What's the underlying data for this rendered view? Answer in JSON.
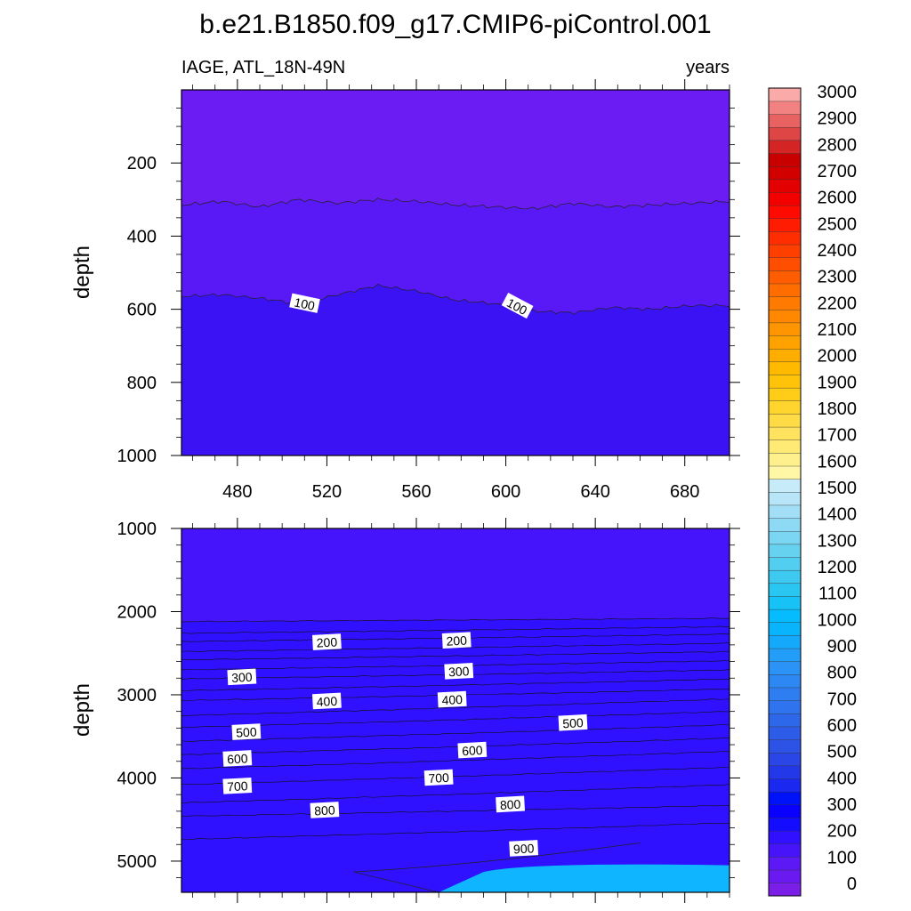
{
  "title": "b.e21.B1850.f09_g17.CMIP6-piControl.001",
  "chart_data": [
    {
      "type": "heatmap",
      "panel": "upper",
      "left_label": "IAGE, ATL_18N-49N",
      "right_label": "years",
      "xlabel": "",
      "ylabel": "depth",
      "xlim": [
        455,
        700
      ],
      "ylim": [
        0,
        1000
      ],
      "y_reversed": true,
      "xticks": [
        480,
        520,
        560,
        600,
        640,
        680
      ],
      "yticks": [
        200,
        400,
        600,
        800,
        1000
      ],
      "contour_levels": [
        50,
        100
      ],
      "contours": [
        {
          "level": 50,
          "depth": [
            315,
            305,
            320,
            300,
            310,
            300,
            305,
            315,
            320,
            325,
            310,
            320,
            315,
            310,
            305
          ],
          "labeled": false
        },
        {
          "level": 100,
          "depth": [
            565,
            560,
            570,
            585,
            560,
            535,
            550,
            575,
            585,
            605,
            610,
            595,
            600,
            590,
            590
          ],
          "labeled": true,
          "label_x": [
            510,
            605
          ]
        }
      ]
    },
    {
      "type": "heatmap",
      "panel": "lower",
      "xlabel": "",
      "ylabel": "depth",
      "xlim": [
        455,
        700
      ],
      "ylim": [
        1000,
        5375
      ],
      "y_reversed": true,
      "yticks": [
        1000,
        2000,
        3000,
        4000,
        5000
      ],
      "contour_levels": [
        200,
        300,
        400,
        500,
        600,
        700,
        800,
        900
      ],
      "contour_depths": [
        {
          "level": 50,
          "left": 2120,
          "right": 2080
        },
        {
          "level": 100,
          "left": 2260,
          "right": 2180
        },
        {
          "level": 150,
          "left": 2360,
          "right": 2270
        },
        {
          "level": 200,
          "left": 2480,
          "right": 2380
        },
        {
          "level": 250,
          "left": 2580,
          "right": 2480
        },
        {
          "level": 300,
          "left": 2700,
          "right": 2590
        },
        {
          "level": 350,
          "left": 2810,
          "right": 2700
        },
        {
          "level": 400,
          "left": 2950,
          "right": 2810
        },
        {
          "level": 450,
          "left": 3070,
          "right": 2930
        },
        {
          "level": 500,
          "left": 3250,
          "right": 3050
        },
        {
          "level": 550,
          "left": 3390,
          "right": 3200
        },
        {
          "level": 600,
          "left": 3560,
          "right": 3360
        },
        {
          "level": 650,
          "left": 3720,
          "right": 3520
        },
        {
          "level": 700,
          "left": 3890,
          "right": 3680
        },
        {
          "level": 750,
          "left": 4080,
          "right": 3870
        },
        {
          "level": 800,
          "left": 4300,
          "right": 4080
        },
        {
          "level": 850,
          "left": 4460,
          "right": 4330
        },
        {
          "level": 900,
          "left": 4740,
          "right": 4540
        }
      ],
      "labels": [
        {
          "text": "200",
          "x": 520,
          "depth": 2370
        },
        {
          "text": "200",
          "x": 578,
          "depth": 2350
        },
        {
          "text": "300",
          "x": 482,
          "depth": 2790
        },
        {
          "text": "300",
          "x": 579,
          "depth": 2720
        },
        {
          "text": "400",
          "x": 520,
          "depth": 3080
        },
        {
          "text": "400",
          "x": 576,
          "depth": 3060
        },
        {
          "text": "500",
          "x": 484,
          "depth": 3450
        },
        {
          "text": "500",
          "x": 630,
          "depth": 3340
        },
        {
          "text": "600",
          "x": 480,
          "depth": 3770
        },
        {
          "text": "600",
          "x": 585,
          "depth": 3670
        },
        {
          "text": "700",
          "x": 480,
          "depth": 4100
        },
        {
          "text": "700",
          "x": 570,
          "depth": 4000
        },
        {
          "text": "800",
          "x": 519,
          "depth": 4390
        },
        {
          "text": "800",
          "x": 602,
          "depth": 4320
        },
        {
          "text": "900",
          "x": 608,
          "depth": 4850
        }
      ]
    }
  ],
  "colorbar": {
    "labels": [
      "0",
      "100",
      "200",
      "300",
      "400",
      "500",
      "600",
      "700",
      "800",
      "900",
      "1000",
      "1100",
      "1200",
      "1300",
      "1400",
      "1500",
      "1600",
      "1700",
      "1800",
      "1900",
      "2000",
      "2100",
      "2200",
      "2300",
      "2400",
      "2500",
      "2600",
      "2700",
      "2800",
      "2900",
      "3000"
    ],
    "colors": [
      "#7b1fe8",
      "#6a1af0",
      "#5c19f5",
      "#4714fa",
      "#3010ff",
      "#140cff",
      "#0a00ff",
      "#0012f8",
      "#1a28f0",
      "#2338e8",
      "#2a46e6",
      "#2c52e6",
      "#2d5de8",
      "#2e68ea",
      "#2f73ee",
      "#2f7ef1",
      "#2d88f3",
      "#2a93f5",
      "#229ef8",
      "#15a9fb",
      "#0ab4fd",
      "#05bcfe",
      "#16c2f6",
      "#2ac6f2",
      "#3ecaf0",
      "#52cef0",
      "#66d2f0",
      "#7ad6f2",
      "#8edaf4",
      "#a2dff6",
      "#b8e5f8",
      "#c8ebfa",
      "#fff7a6",
      "#fff08e",
      "#ffea76",
      "#ffe35e",
      "#ffdc46",
      "#ffd52e",
      "#ffcd18",
      "#ffc40a",
      "#ffba00",
      "#ffae00",
      "#ffa200",
      "#ff9500",
      "#ff8800",
      "#ff7a00",
      "#ff6c00",
      "#ff5d00",
      "#ff4e00",
      "#ff3f00",
      "#ff2e00",
      "#ff1c00",
      "#ff0a00",
      "#f20000",
      "#e20000",
      "#d30000",
      "#c80000",
      "#d42424",
      "#de4545",
      "#e86262",
      "#f28282",
      "#fbaaaa"
    ]
  }
}
